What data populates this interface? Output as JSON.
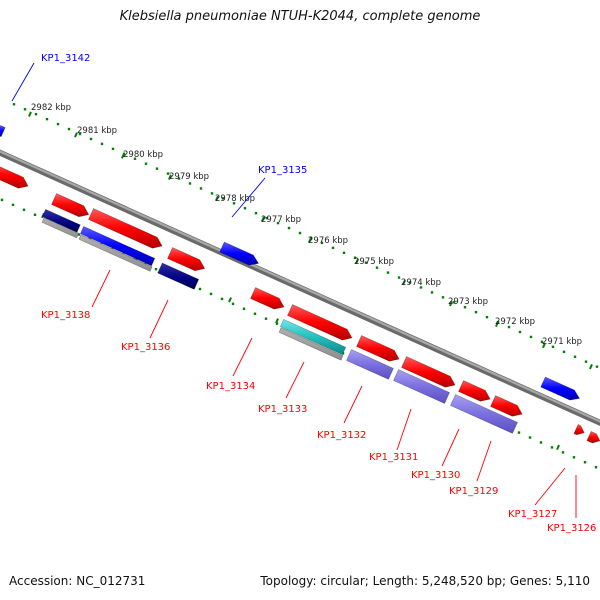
{
  "title": "Klebsiella pneumoniae NTUH-K2044, complete genome",
  "footer": {
    "accession": "Accession: NC_012731",
    "summary": "Topology: circular; Length: 5,248,520 bp; Genes: 5,110"
  },
  "colors": {
    "forward_gene": "#ff0000",
    "forward_gene_dark": "#c80000",
    "reverse_gene": "#0000ff",
    "backbone": "#808080",
    "tick": "#008000",
    "cds_navy": "#000080",
    "cds_cyan": "#20c0c0",
    "cds_lavender": "#7a70e0"
  },
  "scale_labels": [
    "2982 kbp",
    "2981 kbp",
    "2980 kbp",
    "2979 kbp",
    "2978 kbp",
    "2977 kbp",
    "2976 kbp",
    "2975 kbp",
    "2974 kbp",
    "2973 kbp",
    "2972 kbp",
    "2971 kbp"
  ],
  "gene_labels": [
    {
      "name": "KP1_3142",
      "strand": "reverse"
    },
    {
      "name": "KP1_3135",
      "strand": "reverse"
    },
    {
      "name": "KP1_3138",
      "strand": "forward"
    },
    {
      "name": "KP1_3136",
      "strand": "forward"
    },
    {
      "name": "KP1_3134",
      "strand": "forward"
    },
    {
      "name": "KP1_3133",
      "strand": "forward"
    },
    {
      "name": "KP1_3132",
      "strand": "forward"
    },
    {
      "name": "KP1_3131",
      "strand": "forward"
    },
    {
      "name": "KP1_3130",
      "strand": "forward"
    },
    {
      "name": "KP1_3129",
      "strand": "forward"
    },
    {
      "name": "KP1_3127",
      "strand": "forward"
    },
    {
      "name": "KP1_3126",
      "strand": "forward"
    }
  ]
}
